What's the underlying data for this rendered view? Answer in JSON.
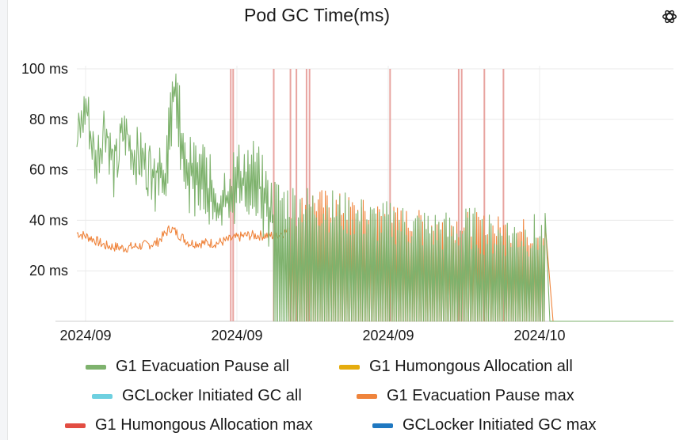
{
  "panel": {
    "title": "Pod GC Time(ms)",
    "menu_icon": "openai-logo-icon"
  },
  "chart_data": {
    "type": "line",
    "title": "Pod GC Time(ms)",
    "y_unit": "ms",
    "ylim": [
      0,
      100
    ],
    "y_ticks": [
      20,
      40,
      60,
      80,
      100
    ],
    "y_tick_labels": [
      "20 ms",
      "40 ms",
      "60 ms",
      "80 ms",
      "100 ms"
    ],
    "x_tick_labels": [
      "2024/09",
      "2024/09",
      "2024/09",
      "2024/10"
    ],
    "grid": true,
    "legend_position": "bottom",
    "series": [
      {
        "name": "G1 Evacuation Pause all",
        "color": "#7eb26d"
      },
      {
        "name": "G1 Humongous Allocation all",
        "color": "#e5ac0e"
      },
      {
        "name": "GCLocker Initiated GC all",
        "color": "#6ed0e0"
      },
      {
        "name": "G1 Evacuation Pause max",
        "color": "#ef843c"
      },
      {
        "name": "G1 Humongous Allocation max",
        "color": "#e24d42"
      },
      {
        "name": "GCLocker Initiated GC max",
        "color": "#1f78c1"
      }
    ],
    "g1_evacuation_pause_all_profile": [
      [
        0,
        70
      ],
      [
        0.02,
        86
      ],
      [
        0.04,
        62
      ],
      [
        0.06,
        80
      ],
      [
        0.08,
        58
      ],
      [
        0.1,
        75
      ],
      [
        0.13,
        65
      ],
      [
        0.16,
        60
      ],
      [
        0.19,
        58
      ],
      [
        0.21,
        95
      ],
      [
        0.23,
        58
      ],
      [
        0.27,
        57
      ],
      [
        0.3,
        43
      ],
      [
        0.34,
        55
      ],
      [
        0.38,
        57
      ],
      [
        0.42,
        40
      ],
      [
        0.46,
        38
      ],
      [
        0.5,
        36
      ],
      [
        0.54,
        35
      ],
      [
        0.58,
        33
      ],
      [
        0.6,
        32
      ],
      [
        0.64,
        30
      ],
      [
        0.68,
        30
      ],
      [
        0.72,
        28
      ],
      [
        0.76,
        27
      ],
      [
        0.8,
        26
      ],
      [
        0.84,
        28
      ],
      [
        0.88,
        25
      ],
      [
        0.92,
        25
      ],
      [
        0.96,
        25
      ],
      [
        1,
        25
      ]
    ],
    "g1_evacuation_pause_max_profile": [
      [
        0,
        35
      ],
      [
        0.03,
        33
      ],
      [
        0.06,
        30
      ],
      [
        0.1,
        29
      ],
      [
        0.14,
        30
      ],
      [
        0.17,
        31
      ],
      [
        0.2,
        37
      ],
      [
        0.24,
        31
      ],
      [
        0.3,
        31
      ],
      [
        0.36,
        34
      ],
      [
        0.42,
        34
      ],
      [
        0.46,
        36
      ],
      [
        0.5,
        41
      ],
      [
        0.54,
        40
      ],
      [
        0.58,
        38
      ],
      [
        0.62,
        36
      ],
      [
        0.66,
        35
      ],
      [
        0.7,
        33
      ],
      [
        0.74,
        32
      ],
      [
        0.78,
        32
      ],
      [
        0.82,
        32
      ],
      [
        0.86,
        31
      ],
      [
        0.9,
        30
      ],
      [
        0.95,
        29
      ],
      [
        1,
        29
      ]
    ],
    "g1_humongous_allocation_max_spikes_frac": [
      0.258,
      0.262,
      0.33,
      0.358,
      0.368,
      0.385,
      0.39,
      0.525,
      0.64,
      0.645,
      0.683,
      0.715
    ]
  }
}
